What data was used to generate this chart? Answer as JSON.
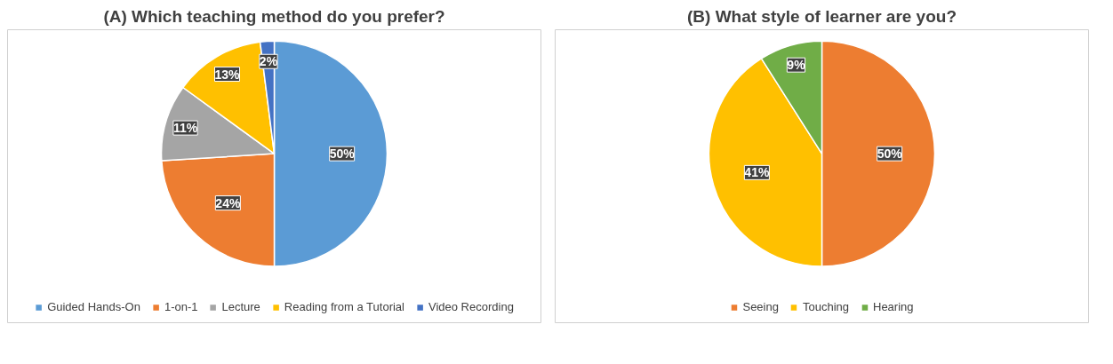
{
  "chart_data": [
    {
      "type": "pie",
      "title": "(A) Which teaching method do you prefer?",
      "categories": [
        "Guided Hands-On",
        "1-on-1",
        "Lecture",
        "Reading from a Tutorial",
        "Video Recording"
      ],
      "values": [
        50,
        24,
        11,
        13,
        2
      ],
      "colors": [
        "#5b9bd5",
        "#ed7d31",
        "#a5a5a5",
        "#ffc000",
        "#4472c4"
      ],
      "value_labels": [
        "50%",
        "24%",
        "11%",
        "13%",
        "2%"
      ],
      "legend": "bottom"
    },
    {
      "type": "pie",
      "title": "(B) What style of learner are you?",
      "categories": [
        "Seeing",
        "Touching",
        "Hearing"
      ],
      "values": [
        50,
        41,
        9
      ],
      "colors": [
        "#ed7d31",
        "#ffc000",
        "#70ad47"
      ],
      "value_labels": [
        "50%",
        "41%",
        "9%"
      ],
      "legend": "bottom"
    }
  ]
}
